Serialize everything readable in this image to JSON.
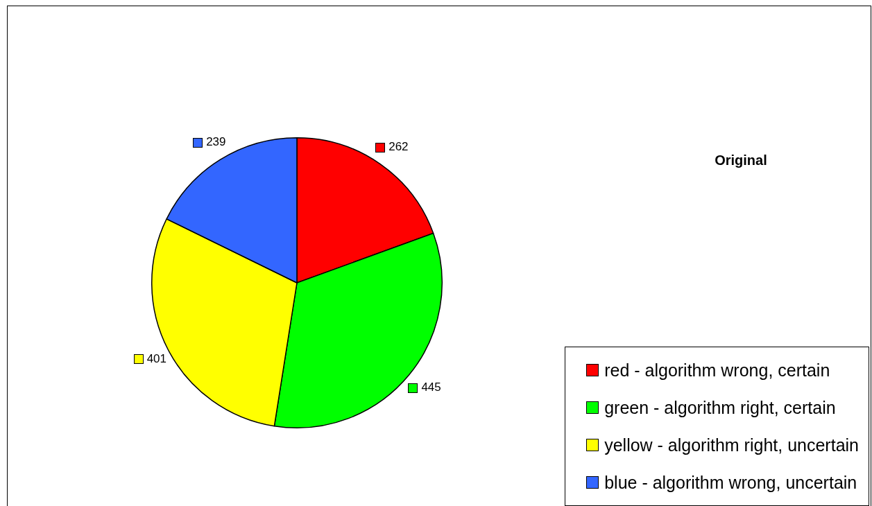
{
  "chart_data": {
    "type": "pie",
    "title": "Original",
    "categories": [
      "red - algorithm wrong, certain",
      "green - algorithm right, certain",
      "yellow - algorithm right, uncertain",
      "blue - algorithm wrong, uncertain"
    ],
    "values": [
      262,
      445,
      401,
      239
    ],
    "colors": [
      "#ff0000",
      "#00ff00",
      "#ffff00",
      "#3366ff"
    ],
    "legend": "bottom right",
    "data_labels": true
  }
}
